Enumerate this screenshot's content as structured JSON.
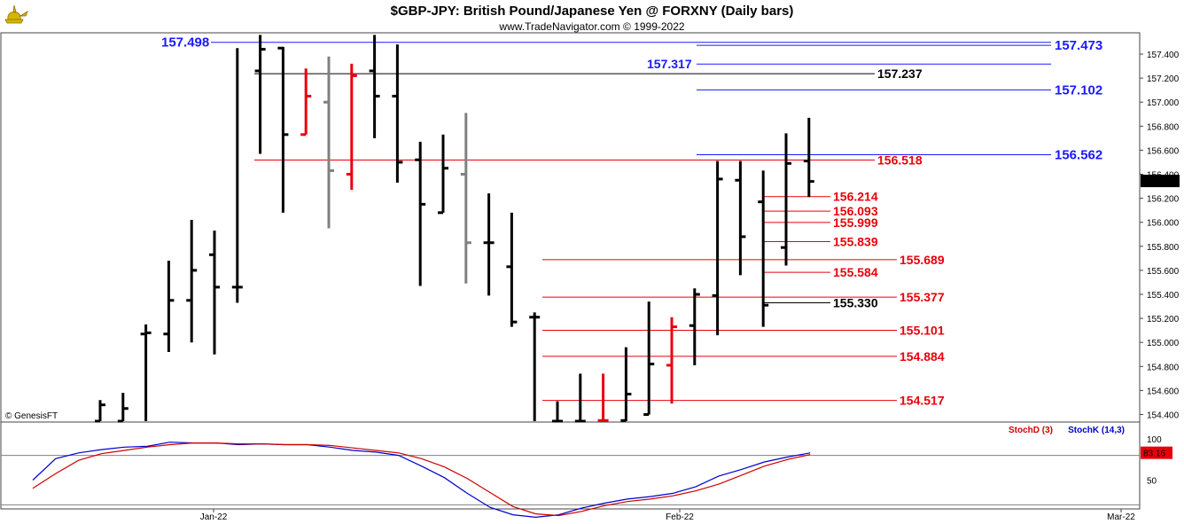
{
  "header": {
    "title": "$GBP-JPY:  British Pound/Japanese Yen @ FORXNY  (Daily bars)",
    "subtitle": "www.TradeNavigator.com © 1999-2022",
    "watermark": "© GenesisFT",
    "logo_icon": "genie-lamp-icon"
  },
  "chart_data": [
    {
      "type": "ohlc",
      "ylim": [
        154.3,
        157.6
      ],
      "yticks": [
        "157.400",
        "157.200",
        "157.000",
        "156.800",
        "156.600",
        "156.400",
        "156.200",
        "156.000",
        "155.800",
        "155.600",
        "155.400",
        "155.200",
        "155.000",
        "154.800",
        "154.600",
        "154.400"
      ],
      "xticks": [
        "Jan-22",
        "Feb-22",
        "Mar-22"
      ],
      "last_price": "156.344",
      "colors": {
        "normal": "#000000",
        "down_highlight": "#e8000b",
        "inside": "#808080",
        "resistance": "#1a1aff",
        "support": "#e8000b"
      },
      "bars": [
        {
          "o": 154.3,
          "h": 154.52,
          "l": 154.3,
          "c": 154.48,
          "color": "black"
        },
        {
          "o": 154.3,
          "h": 154.58,
          "l": 154.3,
          "c": 154.45,
          "color": "black"
        },
        {
          "o": 155.07,
          "h": 155.15,
          "l": 154.3,
          "c": 155.08,
          "color": "black"
        },
        {
          "o": 155.07,
          "h": 155.68,
          "l": 154.92,
          "c": 155.35,
          "color": "black"
        },
        {
          "o": 155.35,
          "h": 156.02,
          "l": 155.0,
          "c": 155.6,
          "color": "black"
        },
        {
          "o": 155.73,
          "h": 155.93,
          "l": 154.9,
          "c": 155.46,
          "color": "black"
        },
        {
          "o": 155.46,
          "h": 157.45,
          "l": 155.33,
          "c": 155.46,
          "color": "black"
        },
        {
          "o": 157.26,
          "h": 157.56,
          "l": 156.57,
          "c": 157.44,
          "color": "black"
        },
        {
          "o": 157.45,
          "h": 157.46,
          "l": 156.08,
          "c": 156.73,
          "color": "black"
        },
        {
          "o": 156.73,
          "h": 157.28,
          "l": 156.73,
          "c": 157.05,
          "color": "red"
        },
        {
          "o": 157.0,
          "h": 157.38,
          "l": 155.95,
          "c": 156.43,
          "color": "gray"
        },
        {
          "o": 156.4,
          "h": 157.32,
          "l": 156.27,
          "c": 157.22,
          "color": "red"
        },
        {
          "o": 157.26,
          "h": 157.56,
          "l": 156.7,
          "c": 157.05,
          "color": "black"
        },
        {
          "o": 157.05,
          "h": 157.48,
          "l": 156.33,
          "c": 156.5,
          "color": "black"
        },
        {
          "o": 156.52,
          "h": 156.67,
          "l": 155.47,
          "c": 156.15,
          "color": "black"
        },
        {
          "o": 156.08,
          "h": 156.73,
          "l": 156.08,
          "c": 156.45,
          "color": "black"
        },
        {
          "o": 156.4,
          "h": 156.91,
          "l": 155.49,
          "c": 155.83,
          "color": "gray"
        },
        {
          "o": 155.83,
          "h": 156.24,
          "l": 155.39,
          "c": 155.83,
          "color": "black"
        },
        {
          "o": 155.63,
          "h": 156.08,
          "l": 155.13,
          "c": 155.17,
          "color": "black"
        },
        {
          "o": 155.21,
          "h": 155.25,
          "l": 154.3,
          "c": 155.21,
          "color": "black"
        },
        {
          "o": 154.3,
          "h": 154.51,
          "l": 154.3,
          "c": 154.3,
          "color": "black"
        },
        {
          "o": 154.33,
          "h": 154.74,
          "l": 154.3,
          "c": 154.33,
          "color": "black"
        },
        {
          "o": 154.35,
          "h": 154.74,
          "l": 154.3,
          "c": 154.35,
          "color": "red"
        },
        {
          "o": 154.35,
          "h": 154.96,
          "l": 154.3,
          "c": 154.57,
          "color": "black"
        },
        {
          "o": 154.4,
          "h": 155.34,
          "l": 154.4,
          "c": 154.82,
          "color": "black"
        },
        {
          "o": 154.81,
          "h": 155.21,
          "l": 154.49,
          "c": 155.13,
          "color": "red"
        },
        {
          "o": 155.14,
          "h": 155.45,
          "l": 154.81,
          "c": 155.4,
          "color": "black"
        },
        {
          "o": 155.39,
          "h": 156.51,
          "l": 155.06,
          "c": 156.36,
          "color": "black"
        },
        {
          "o": 156.35,
          "h": 156.51,
          "l": 155.56,
          "c": 155.88,
          "color": "black"
        },
        {
          "o": 156.17,
          "h": 156.43,
          "l": 155.13,
          "c": 155.31,
          "color": "black"
        },
        {
          "o": 155.79,
          "h": 156.74,
          "l": 155.64,
          "c": 156.49,
          "color": "black"
        },
        {
          "o": 156.51,
          "h": 156.87,
          "l": 156.21,
          "c": 156.34,
          "color": "black"
        }
      ],
      "levels": [
        {
          "price": 157.498,
          "label": "157.498",
          "color": "blue",
          "side": "left"
        },
        {
          "price": 157.473,
          "label": "157.473",
          "color": "blue",
          "side": "right"
        },
        {
          "price": 157.317,
          "label": "157.317",
          "color": "blue",
          "side": "mid"
        },
        {
          "price": 157.237,
          "label": "157.237",
          "color": "black",
          "side": "mid"
        },
        {
          "price": 157.102,
          "label": "157.102",
          "color": "blue",
          "side": "right"
        },
        {
          "price": 156.562,
          "label": "156.562",
          "color": "blue",
          "side": "right"
        },
        {
          "price": 156.518,
          "label": "156.518",
          "color": "red",
          "side": "mid"
        },
        {
          "price": 156.214,
          "label": "156.214",
          "color": "red",
          "side": "near"
        },
        {
          "price": 156.093,
          "label": "156.093",
          "color": "red",
          "side": "near"
        },
        {
          "price": 155.999,
          "label": "155.999",
          "color": "red",
          "side": "near"
        },
        {
          "price": 155.839,
          "label": "155.839",
          "color": "red",
          "side": "near"
        },
        {
          "price": 155.689,
          "label": "155.689",
          "color": "red",
          "side": "mid"
        },
        {
          "price": 155.584,
          "label": "155.584",
          "color": "red",
          "side": "near"
        },
        {
          "price": 155.377,
          "label": "155.377",
          "color": "red",
          "side": "mid"
        },
        {
          "price": 155.33,
          "label": "155.330",
          "color": "black",
          "side": "near"
        },
        {
          "price": 155.101,
          "label": "155.101",
          "color": "red",
          "side": "mid"
        },
        {
          "price": 154.884,
          "label": "154.884",
          "color": "red",
          "side": "mid"
        },
        {
          "price": 154.517,
          "label": "154.517",
          "color": "red",
          "side": "mid"
        }
      ]
    },
    {
      "type": "line",
      "ylim": [
        0,
        100
      ],
      "yticks": [
        "100",
        "50"
      ],
      "last_value": "83.16",
      "legend": [
        "StochD (3)",
        "StochK (14,3)"
      ],
      "series": [
        {
          "name": "StochK (14,3)",
          "color": "#0000cc",
          "values": [
            50,
            76,
            83,
            87,
            90,
            91,
            96,
            95,
            95,
            93,
            94,
            93,
            93,
            90,
            86,
            84,
            80,
            67,
            53,
            34,
            17,
            8,
            5,
            8,
            16,
            22,
            27,
            30,
            34,
            42,
            55,
            63,
            72,
            78,
            83
          ]
        },
        {
          "name": "StochD (3)",
          "color": "#cc0000",
          "values": [
            40,
            58,
            74,
            82,
            86,
            90,
            93,
            95,
            95,
            94,
            94,
            93,
            93,
            92,
            89,
            86,
            83,
            76,
            66,
            52,
            35,
            18,
            9,
            7,
            12,
            19,
            24,
            27,
            31,
            37,
            45,
            56,
            67,
            75,
            81
          ]
        }
      ]
    }
  ]
}
